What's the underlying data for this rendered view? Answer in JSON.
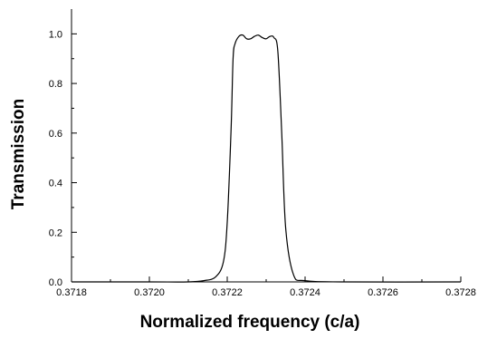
{
  "chart_data": {
    "type": "line",
    "title": "",
    "xlabel": "Normalized frequency (c/a)",
    "ylabel": "Transmission",
    "xlim": [
      0.3718,
      0.3728
    ],
    "ylim": [
      0.0,
      1.1
    ],
    "x_ticks": [
      0.3718,
      0.372,
      0.3722,
      0.3724,
      0.3726,
      0.3728
    ],
    "x_tick_labels": [
      "0.3718",
      "0.3720",
      "0.3722",
      "0.3724",
      "0.3726",
      "0.3728"
    ],
    "y_ticks": [
      0.0,
      0.2,
      0.4,
      0.6,
      0.8,
      1.0
    ],
    "y_tick_labels": [
      "0.0",
      "0.2",
      "0.4",
      "0.6",
      "0.8",
      "1.0"
    ],
    "grid": false,
    "legend": "none",
    "series": [
      {
        "x": [
          0.3718,
          0.372,
          0.3721,
          0.37214,
          0.37217,
          0.37219,
          0.3722,
          0.37221,
          0.372215,
          0.37222,
          0.37223,
          0.37224,
          0.37225,
          0.37226,
          0.37227,
          0.37228,
          0.37229,
          0.3723,
          0.37231,
          0.37232,
          0.37233,
          0.37234,
          0.37235,
          0.37237,
          0.3724,
          0.3725,
          0.3728
        ],
        "values": [
          0.0,
          0.0,
          0.0,
          0.005,
          0.02,
          0.08,
          0.24,
          0.62,
          0.9,
          0.96,
          0.99,
          0.995,
          0.98,
          0.98,
          0.99,
          0.995,
          0.985,
          0.98,
          0.99,
          0.985,
          0.93,
          0.6,
          0.22,
          0.03,
          0.005,
          0.0,
          0.0
        ]
      }
    ]
  }
}
